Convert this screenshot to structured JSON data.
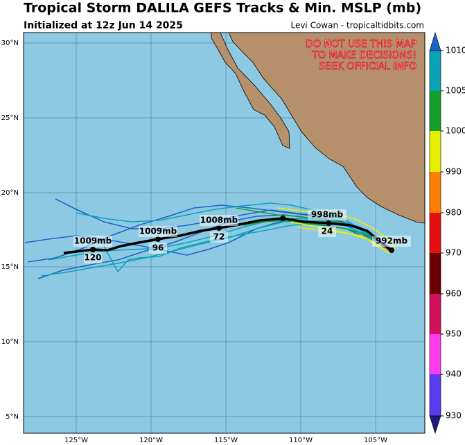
{
  "header": {
    "title": "Tropical Storm DALILA GEFS Tracks & Min. MSLP (mb)",
    "subtitle": "Initialized at 12z Jun 14 2025",
    "credit": "Levi Cowan - tropicaltidbits.com"
  },
  "warning": [
    "DO NOT USE THIS MAP",
    "TO MAKE DECISIONS!",
    "SEEK OFFICIAL INFO"
  ],
  "latitude_labels": [
    "30°N",
    "25°N",
    "20°N",
    "15°N",
    "10°N",
    "5°N"
  ],
  "longitude_labels": [
    "125°W",
    "120°W",
    "115°W",
    "110°W",
    "105°W"
  ],
  "colorbar": {
    "labels": [
      1010,
      1005,
      1000,
      990,
      980,
      970,
      960,
      950,
      940,
      930
    ]
  },
  "track_labels": [
    {
      "pressure": "1009mb",
      "hour": "120"
    },
    {
      "pressure": "1009mb",
      "hour": "96"
    },
    {
      "pressure": "1008mb",
      "hour": "72"
    },
    {
      "pressure": "998mb",
      "hour": "24"
    },
    {
      "pressure": "992mb"
    }
  ]
}
